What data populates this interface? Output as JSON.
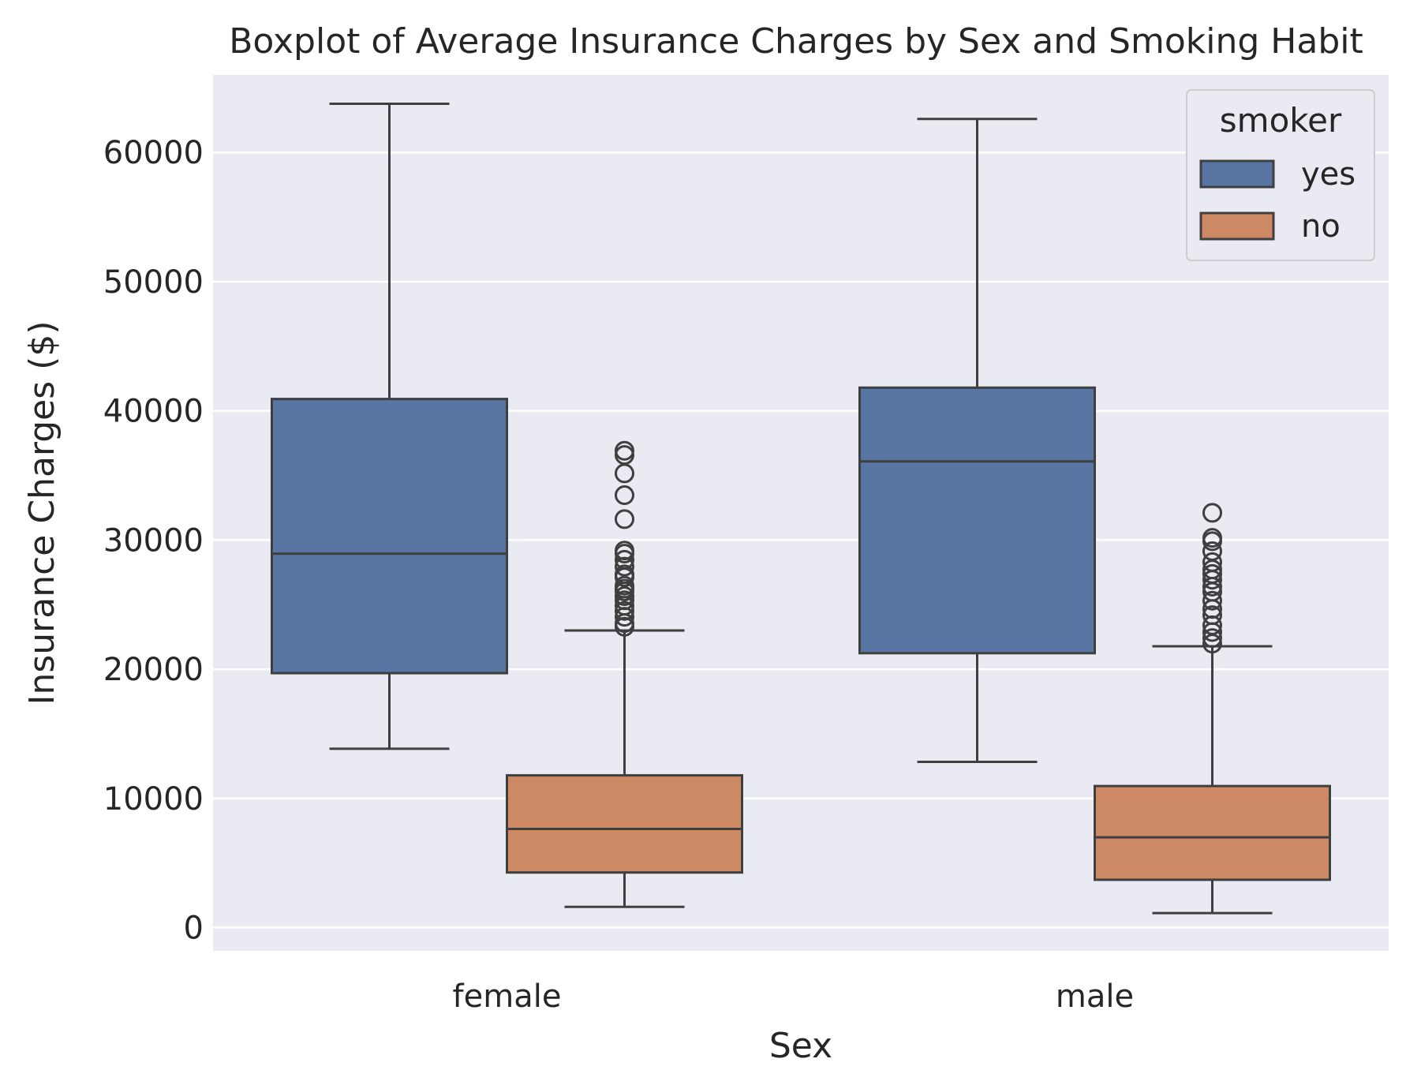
{
  "chart_data": {
    "type": "boxplot",
    "title": "Boxplot of Average Insurance Charges by Sex and Smoking Habit",
    "xlabel": "Sex",
    "ylabel": "Insurance Charges ($)",
    "ylim": [
      -1800,
      66000
    ],
    "yticks": [
      0,
      10000,
      20000,
      30000,
      40000,
      50000,
      60000
    ],
    "categories": [
      "female",
      "male"
    ],
    "grid": true,
    "legend": {
      "title": "smoker",
      "position": "top-right"
    },
    "series": [
      {
        "name": "yes",
        "color": "#5875a4",
        "boxes": [
          {
            "category": "female",
            "whisker_low": 13844,
            "q1": 19696,
            "median": 28950,
            "q3": 40919,
            "whisker_high": 63770,
            "outliers": []
          },
          {
            "category": "male",
            "whisker_low": 12829,
            "q1": 21241,
            "median": 36085,
            "q3": 41797,
            "whisker_high": 62592,
            "outliers": []
          }
        ]
      },
      {
        "name": "no",
        "color": "#cc8963",
        "boxes": [
          {
            "category": "female",
            "whisker_low": 1607,
            "q1": 4265,
            "median": 7639,
            "q3": 11786,
            "whisker_high": 22996,
            "outliers": [
              23288,
              23568,
              24059,
              24513,
              24915,
              25333,
              25656,
              26018,
              26237,
              26467,
              27117,
              27346,
              27941,
              28476,
              28950,
              29186,
              31620,
              33472,
              35160,
              36580,
              36910
            ]
          },
          {
            "category": "male",
            "whisker_low": 1121,
            "q1": 3702,
            "median": 6986,
            "q3": 10959,
            "whisker_high": 21774,
            "outliers": [
              21984,
              22412,
              22879,
              23401,
              24180,
              24667,
              25307,
              25992,
              26392,
              26926,
              27375,
              27724,
              28287,
              29141,
              29905,
              30166,
              32108
            ]
          }
        ]
      }
    ]
  }
}
